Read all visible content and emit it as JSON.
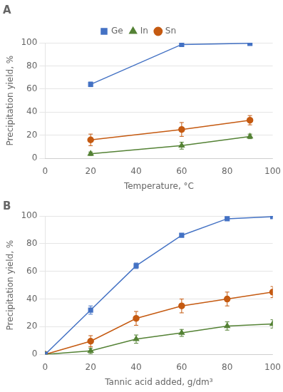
{
  "chart_data": [
    {
      "type": "line",
      "title": "A",
      "x": [
        20,
        60,
        90
      ],
      "series": [
        {
          "name": "Ge",
          "color": "#4472C4",
          "marker": "square",
          "values": [
            64,
            98.5,
            99.5
          ],
          "errors": [
            2,
            1,
            0.5
          ]
        },
        {
          "name": "In",
          "color": "#548235",
          "marker": "triangle",
          "values": [
            4,
            11,
            19
          ],
          "errors": [
            1.5,
            3,
            2
          ]
        },
        {
          "name": "Sn",
          "color": "#C55A11",
          "marker": "circle",
          "values": [
            16,
            25,
            33
          ],
          "errors": [
            5,
            6,
            4
          ]
        }
      ],
      "xlabel": "Temperature, °C",
      "ylabel": "Precipitation yield, %",
      "xlim": [
        0,
        100
      ],
      "ylim": [
        0,
        100
      ],
      "xticks": [
        0,
        20,
        40,
        60,
        80,
        100
      ],
      "yticks": [
        0,
        20,
        40,
        60,
        80,
        100
      ],
      "grid": "y",
      "legend": "top"
    },
    {
      "type": "line",
      "title": "B",
      "x": [
        0,
        20,
        40,
        60,
        80,
        100
      ],
      "series": [
        {
          "name": "Ge",
          "color": "#4472C4",
          "marker": "square",
          "values": [
            0,
            32,
            64,
            86,
            98,
            99.5
          ],
          "errors": [
            0,
            3,
            2,
            1,
            0.5,
            0.5
          ]
        },
        {
          "name": "In",
          "color": "#548235",
          "marker": "triangle",
          "values": [
            0,
            2.5,
            11,
            15.5,
            20.5,
            22
          ],
          "errors": [
            0,
            2,
            3,
            2.5,
            3,
            3
          ]
        },
        {
          "name": "Sn",
          "color": "#C55A11",
          "marker": "circle",
          "values": [
            0,
            9.5,
            26,
            35,
            40,
            45
          ],
          "errors": [
            0,
            4,
            5,
            5,
            5,
            4
          ]
        }
      ],
      "xlabel": "Tannic acid added, g/dm³",
      "ylabel": "Precipitation yield, %",
      "xlim": [
        0,
        100
      ],
      "ylim": [
        0,
        100
      ],
      "xticks": [
        0,
        20,
        40,
        60,
        80,
        100
      ],
      "yticks": [
        0,
        20,
        40,
        60,
        80,
        100
      ],
      "grid": "y"
    }
  ]
}
